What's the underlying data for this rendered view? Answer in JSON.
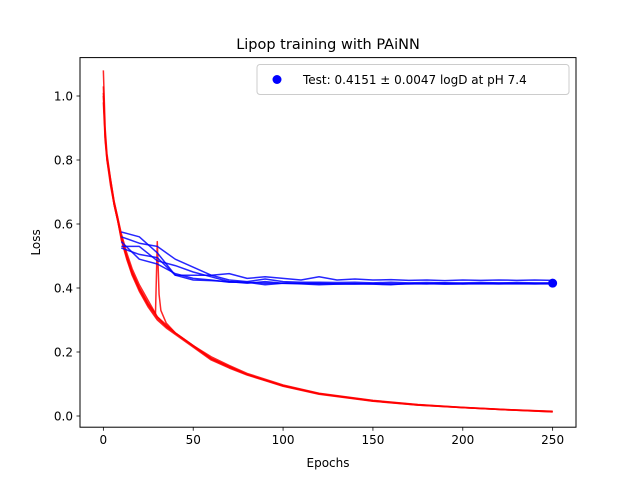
{
  "chart_data": {
    "type": "line",
    "title": "Lipop training with PAiNN",
    "xlabel": "Epochs",
    "ylabel": "Loss",
    "xlim": [
      -13,
      263
    ],
    "ylim": [
      -0.035,
      1.12
    ],
    "x_ticks": [
      0,
      50,
      100,
      150,
      200,
      250
    ],
    "y_ticks": [
      0.0,
      0.2,
      0.4,
      0.6,
      0.8,
      1.0
    ],
    "y_tick_labels": [
      "0.0",
      "0.2",
      "0.4",
      "0.6",
      "0.8",
      "1.0"
    ],
    "legend": {
      "placement": "upper right",
      "entries": [
        {
          "label": "Test: 0.4151 ± 0.0047 logD at pH 7.4",
          "marker": "circle",
          "color": "#0000ff"
        }
      ]
    },
    "train_color": "#ff0000",
    "val_color": "#0000ff",
    "train_series": [
      {
        "x": [
          0,
          1,
          2,
          4,
          6,
          8,
          10,
          13,
          16,
          20,
          25,
          30,
          35,
          40,
          50,
          60,
          70,
          80,
          100,
          120,
          150,
          175,
          200,
          225,
          250
        ],
        "y": [
          1.08,
          0.9,
          0.82,
          0.74,
          0.67,
          0.62,
          0.56,
          0.5,
          0.45,
          0.4,
          0.35,
          0.31,
          0.28,
          0.26,
          0.22,
          0.18,
          0.155,
          0.13,
          0.095,
          0.07,
          0.048,
          0.035,
          0.027,
          0.02,
          0.014
        ]
      },
      {
        "x": [
          0,
          1,
          2,
          4,
          6,
          8,
          10,
          13,
          16,
          20,
          25,
          29,
          30,
          31,
          32,
          35,
          40,
          50,
          60,
          70,
          80,
          100,
          120,
          150,
          175,
          200,
          225,
          250
        ],
        "y": [
          1.0,
          0.88,
          0.81,
          0.73,
          0.66,
          0.61,
          0.56,
          0.5,
          0.45,
          0.4,
          0.35,
          0.32,
          0.545,
          0.38,
          0.33,
          0.29,
          0.26,
          0.22,
          0.18,
          0.155,
          0.13,
          0.094,
          0.069,
          0.047,
          0.034,
          0.026,
          0.019,
          0.013
        ]
      },
      {
        "x": [
          0,
          1,
          2,
          4,
          6,
          8,
          10,
          13,
          16,
          20,
          25,
          30,
          35,
          40,
          50,
          60,
          70,
          80,
          100,
          120,
          150,
          175,
          200,
          225,
          250
        ],
        "y": [
          0.98,
          0.86,
          0.8,
          0.72,
          0.66,
          0.61,
          0.55,
          0.49,
          0.44,
          0.39,
          0.34,
          0.3,
          0.275,
          0.255,
          0.215,
          0.175,
          0.15,
          0.128,
          0.093,
          0.068,
          0.046,
          0.034,
          0.026,
          0.019,
          0.013
        ]
      },
      {
        "x": [
          0,
          1,
          2,
          4,
          6,
          8,
          10,
          13,
          16,
          20,
          25,
          30,
          35,
          40,
          50,
          60,
          70,
          80,
          100,
          120,
          150,
          175,
          200,
          225,
          250
        ],
        "y": [
          1.03,
          0.87,
          0.81,
          0.74,
          0.67,
          0.62,
          0.57,
          0.51,
          0.46,
          0.41,
          0.36,
          0.31,
          0.285,
          0.26,
          0.22,
          0.185,
          0.158,
          0.133,
          0.097,
          0.071,
          0.049,
          0.036,
          0.027,
          0.02,
          0.015
        ]
      },
      {
        "x": [
          0,
          1,
          2,
          4,
          6,
          8,
          10,
          13,
          16,
          20,
          25,
          30,
          35,
          40,
          50,
          60,
          70,
          80,
          100,
          120,
          150,
          175,
          200,
          225,
          250
        ],
        "y": [
          1.01,
          0.87,
          0.8,
          0.73,
          0.66,
          0.61,
          0.555,
          0.495,
          0.445,
          0.395,
          0.345,
          0.305,
          0.28,
          0.258,
          0.218,
          0.178,
          0.152,
          0.13,
          0.095,
          0.07,
          0.047,
          0.035,
          0.026,
          0.019,
          0.014
        ]
      }
    ],
    "val_series": [
      {
        "x": [
          10,
          20,
          30,
          40,
          50,
          60,
          70,
          80,
          90,
          100,
          110,
          120,
          130,
          140,
          150,
          160,
          170,
          180,
          190,
          200,
          210,
          220,
          230,
          240,
          250
        ],
        "y": [
          0.575,
          0.56,
          0.51,
          0.44,
          0.44,
          0.44,
          0.445,
          0.43,
          0.435,
          0.43,
          0.425,
          0.435,
          0.425,
          0.428,
          0.425,
          0.426,
          0.424,
          0.425,
          0.423,
          0.425,
          0.424,
          0.425,
          0.424,
          0.425,
          0.424
        ]
      },
      {
        "x": [
          10,
          20,
          30,
          40,
          50,
          60,
          70,
          80,
          90,
          100,
          110,
          120,
          130,
          140,
          150,
          160,
          170,
          180,
          190,
          200,
          210,
          220,
          230,
          240,
          250
        ],
        "y": [
          0.53,
          0.53,
          0.485,
          0.47,
          0.45,
          0.435,
          0.42,
          0.415,
          0.42,
          0.415,
          0.413,
          0.41,
          0.412,
          0.413,
          0.412,
          0.41,
          0.414,
          0.413,
          0.416,
          0.413,
          0.414,
          0.415,
          0.414,
          0.414,
          0.414
        ]
      },
      {
        "x": [
          10,
          20,
          30,
          40,
          50,
          60,
          70,
          80,
          90,
          100,
          110,
          120,
          130,
          140,
          150,
          160,
          170,
          180,
          190,
          200,
          210,
          220,
          230,
          240,
          250
        ],
        "y": [
          0.56,
          0.54,
          0.53,
          0.49,
          0.465,
          0.44,
          0.425,
          0.42,
          0.428,
          0.42,
          0.418,
          0.418,
          0.417,
          0.418,
          0.416,
          0.418,
          0.416,
          0.417,
          0.416,
          0.416,
          0.417,
          0.416,
          0.417,
          0.416,
          0.416
        ]
      },
      {
        "x": [
          10,
          20,
          30,
          40,
          50,
          60,
          70,
          80,
          90,
          100,
          110,
          120,
          130,
          140,
          150,
          160,
          170,
          180,
          190,
          200,
          210,
          220,
          230,
          240,
          250
        ],
        "y": [
          0.545,
          0.49,
          0.475,
          0.445,
          0.43,
          0.425,
          0.418,
          0.418,
          0.41,
          0.415,
          0.414,
          0.413,
          0.413,
          0.413,
          0.414,
          0.412,
          0.413,
          0.414,
          0.412,
          0.413,
          0.414,
          0.413,
          0.414,
          0.413,
          0.414
        ]
      },
      {
        "x": [
          10,
          20,
          30,
          40,
          50,
          60,
          70,
          80,
          90,
          100,
          110,
          120,
          130,
          140,
          150,
          160,
          170,
          180,
          190,
          200,
          210,
          220,
          230,
          240,
          250
        ],
        "y": [
          0.525,
          0.505,
          0.495,
          0.44,
          0.425,
          0.423,
          0.42,
          0.418,
          0.415,
          0.415,
          0.415,
          0.415,
          0.413,
          0.413,
          0.413,
          0.413,
          0.413,
          0.413,
          0.413,
          0.413,
          0.413,
          0.413,
          0.413,
          0.413,
          0.413
        ]
      }
    ],
    "test_point": {
      "x": 250,
      "y": 0.4151,
      "color": "#0000ff"
    }
  }
}
